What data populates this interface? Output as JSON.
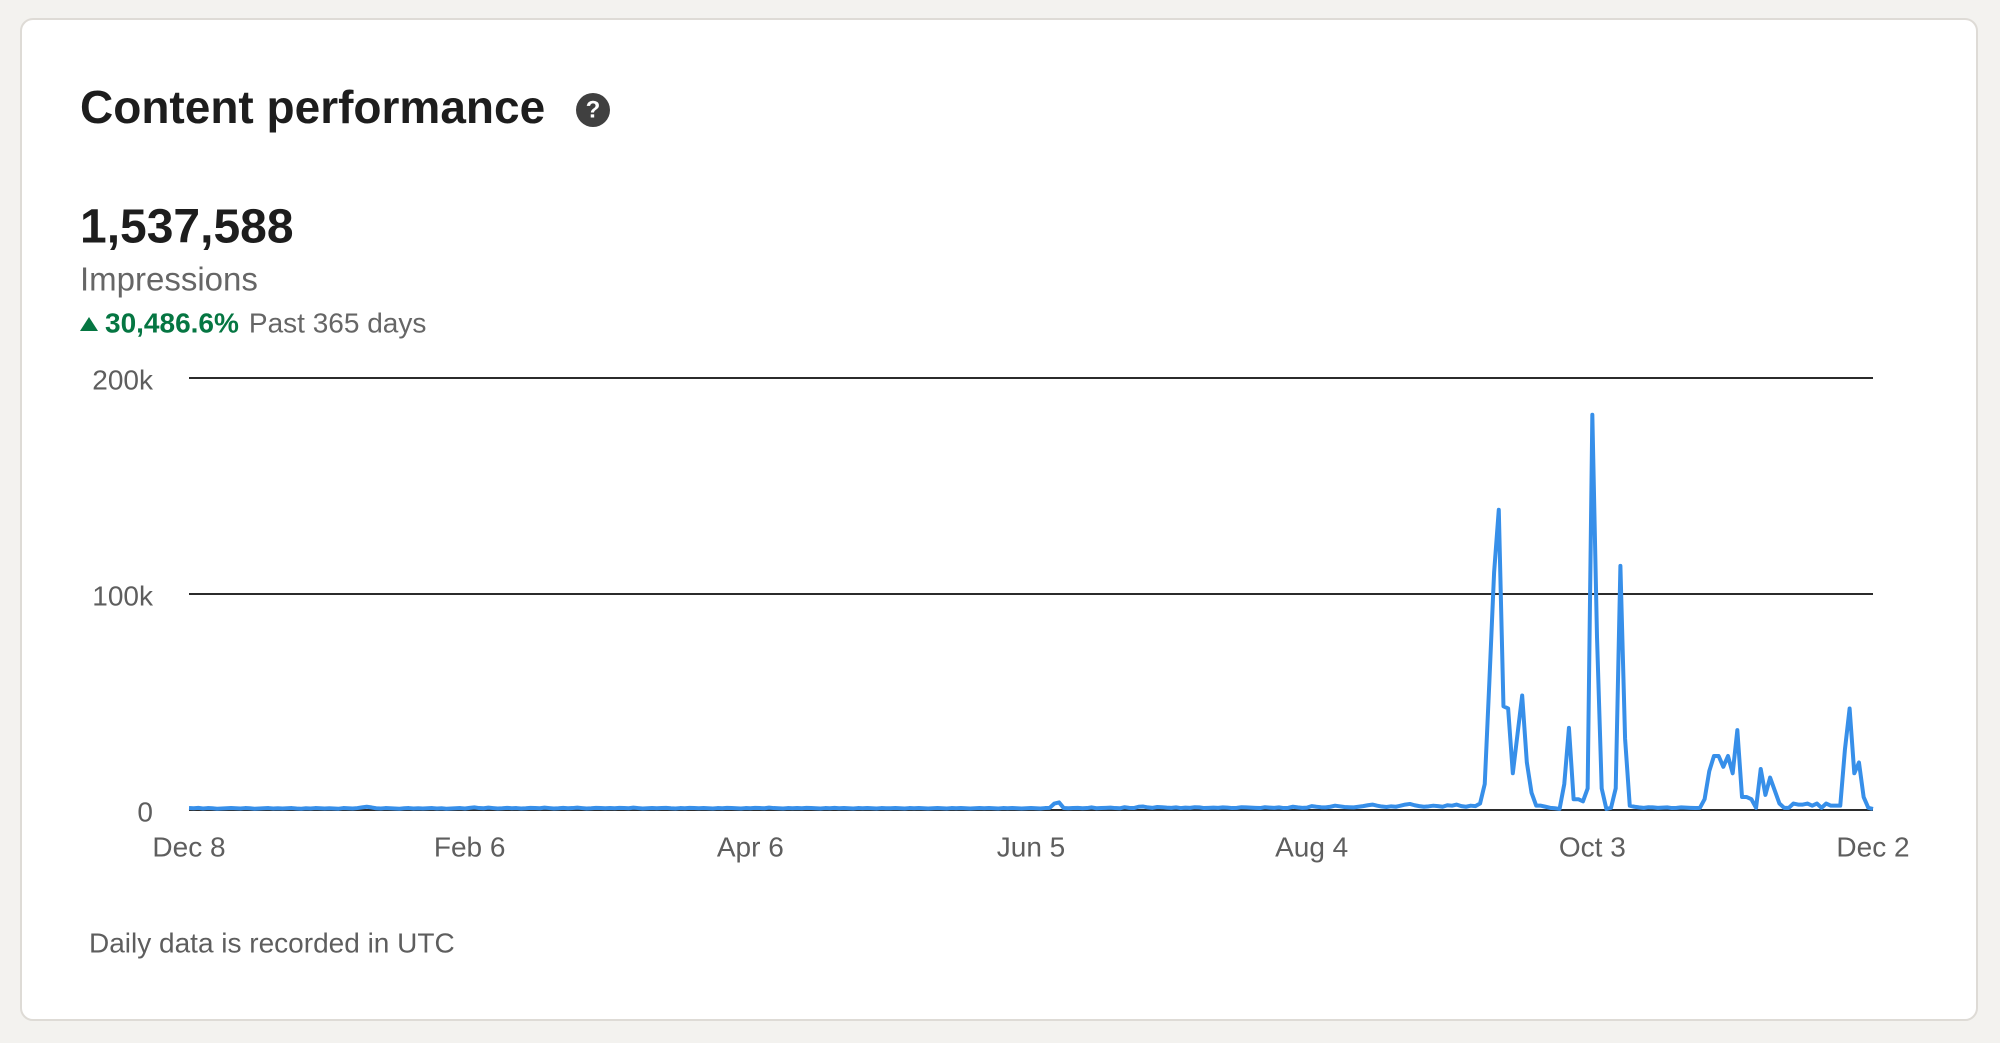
{
  "header": {
    "title": "Content performance",
    "total": "1,537,588",
    "metric": "Impressions",
    "change": "30,486.6%",
    "period": "Past 365 days"
  },
  "footer": "Daily data is recorded in UTC",
  "chart_data": {
    "type": "line",
    "color": "#378fe9",
    "grid": true,
    "ylim": [
      0,
      200000
    ],
    "yticks": [
      0,
      {
        "value": 100000,
        "label": "100k"
      },
      {
        "value": 200000,
        "label": "200k"
      }
    ],
    "categories": [
      "Dec 8",
      null,
      null,
      null,
      null,
      null,
      null,
      null,
      null,
      null,
      null,
      null,
      null,
      null,
      null,
      null,
      null,
      null,
      null,
      null,
      null,
      null,
      null,
      null,
      null,
      null,
      null,
      null,
      null,
      null,
      null,
      null,
      null,
      null,
      null,
      null,
      null,
      null,
      null,
      null,
      null,
      null,
      null,
      null,
      null,
      null,
      null,
      null,
      null,
      null,
      null,
      null,
      null,
      null,
      null,
      null,
      null,
      null,
      null,
      null,
      "Feb 6",
      null,
      null,
      null,
      null,
      null,
      null,
      null,
      null,
      null,
      null,
      null,
      null,
      null,
      null,
      null,
      null,
      null,
      null,
      null,
      null,
      null,
      null,
      null,
      null,
      null,
      null,
      null,
      null,
      null,
      null,
      null,
      null,
      null,
      null,
      null,
      null,
      null,
      null,
      null,
      null,
      null,
      null,
      null,
      null,
      null,
      null,
      null,
      null,
      null,
      null,
      null,
      null,
      null,
      null,
      null,
      null,
      null,
      null,
      null,
      "Apr 6",
      null,
      null,
      null,
      null,
      null,
      null,
      null,
      null,
      null,
      null,
      null,
      null,
      null,
      null,
      null,
      null,
      null,
      null,
      null,
      null,
      null,
      null,
      null,
      null,
      null,
      null,
      null,
      null,
      null,
      null,
      null,
      null,
      null,
      null,
      null,
      null,
      null,
      null,
      null,
      null,
      null,
      null,
      null,
      null,
      null,
      null,
      null,
      null,
      null,
      null,
      null,
      null,
      null,
      null,
      null,
      null,
      null,
      null,
      null,
      "Jun 5",
      null,
      null,
      null,
      null,
      null,
      null,
      null,
      null,
      null,
      null,
      null,
      null,
      null,
      null,
      null,
      null,
      null,
      null,
      null,
      null,
      null,
      null,
      null,
      null,
      null,
      null,
      null,
      null,
      null,
      null,
      null,
      null,
      null,
      null,
      null,
      null,
      null,
      null,
      null,
      null,
      null,
      null,
      null,
      null,
      null,
      null,
      null,
      null,
      null,
      null,
      null,
      null,
      null,
      null,
      null,
      null,
      null,
      null,
      null,
      "Aug 4",
      null,
      null,
      null,
      null,
      null,
      null,
      null,
      null,
      null,
      null,
      null,
      null,
      null,
      null,
      null,
      null,
      null,
      null,
      null,
      null,
      null,
      null,
      null,
      null,
      null,
      null,
      null,
      null,
      null,
      null,
      null,
      null,
      null,
      null,
      null,
      null,
      null,
      null,
      null,
      null,
      null,
      null,
      null,
      null,
      null,
      null,
      null,
      null,
      null,
      null,
      null,
      null,
      null,
      null,
      null,
      null,
      null,
      null,
      null,
      "Oct 3",
      null,
      null,
      null,
      null,
      null,
      null,
      null,
      null,
      null,
      null,
      null,
      null,
      null,
      null,
      null,
      null,
      null,
      null,
      null,
      null,
      null,
      null,
      null,
      null,
      null,
      null,
      null,
      null,
      null,
      null,
      null,
      null,
      null,
      null,
      null,
      null,
      null,
      null,
      null,
      null,
      null,
      null,
      null,
      null,
      null,
      null,
      null,
      null,
      null,
      null,
      null,
      null,
      null,
      null,
      null,
      null,
      null,
      null,
      null,
      "Dec 2"
    ],
    "values": [
      900,
      800,
      1000,
      700,
      900,
      800,
      600,
      700,
      800,
      900,
      800,
      700,
      900,
      800,
      600,
      700,
      800,
      900,
      700,
      800,
      700,
      800,
      900,
      700,
      600,
      800,
      700,
      900,
      800,
      700,
      800,
      700,
      600,
      900,
      800,
      700,
      900,
      1200,
      1500,
      1200,
      800,
      700,
      900,
      800,
      700,
      600,
      800,
      900,
      700,
      800,
      700,
      800,
      900,
      700,
      800,
      600,
      700,
      800,
      900,
      700,
      1000,
      1200,
      900,
      800,
      1100,
      900,
      700,
      800,
      1000,
      800,
      900,
      700,
      800,
      1000,
      900,
      800,
      1100,
      900,
      700,
      800,
      1000,
      800,
      900,
      1100,
      900,
      700,
      800,
      1000,
      900,
      800,
      900,
      800,
      1000,
      900,
      800,
      1100,
      900,
      700,
      800,
      900,
      800,
      900,
      1000,
      800,
      700,
      900,
      800,
      1000,
      900,
      800,
      900,
      800,
      700,
      900,
      800,
      1000,
      900,
      800,
      700,
      900,
      800,
      1000,
      900,
      800,
      1100,
      900,
      800,
      700,
      900,
      800,
      900,
      800,
      1000,
      900,
      800,
      700,
      900,
      800,
      1000,
      800,
      900,
      800,
      700,
      900,
      800,
      900,
      800,
      700,
      900,
      800,
      800,
      900,
      800,
      700,
      900,
      800,
      900,
      800,
      700,
      800,
      900,
      800,
      700,
      900,
      800,
      900,
      800,
      700,
      800,
      900,
      800,
      900,
      800,
      700,
      900,
      800,
      900,
      800,
      700,
      800,
      900,
      800,
      700,
      900,
      1000,
      3000,
      3500,
      900,
      800,
      900,
      1000,
      800,
      900,
      1200,
      800,
      900,
      1000,
      1100,
      900,
      800,
      1300,
      1000,
      900,
      1500,
      1600,
      1200,
      1000,
      1400,
      1300,
      1100,
      1000,
      1200,
      900,
      1100,
      1000,
      1300,
      1200,
      900,
      1000,
      1100,
      1000,
      1200,
      1100,
      900,
      1000,
      1300,
      1200,
      1100,
      1000,
      900,
      1300,
      1100,
      1000,
      1200,
      900,
      1000,
      1500,
      1200,
      1000,
      1100,
      1800,
      1500,
      1300,
      1200,
      1500,
      2000,
      1700,
      1400,
      1300,
      1200,
      1500,
      1800,
      2200,
      2500,
      2000,
      1600,
      1400,
      1700,
      1500,
      2000,
      2500,
      2800,
      2200,
      1800,
      1500,
      1700,
      2000,
      1800,
      1500,
      2200,
      2000,
      2500,
      1800,
      1500,
      2000,
      1800,
      3000,
      12000,
      60000,
      110000,
      139000,
      48000,
      47000,
      17000,
      35000,
      53000,
      22000,
      8000,
      2000,
      2000,
      1500,
      1000,
      800,
      500,
      12000,
      38000,
      5000,
      5000,
      4000,
      10000,
      183000,
      80000,
      10000,
      500,
      1000,
      10000,
      113000,
      33000,
      2000,
      1500,
      1200,
      1000,
      1300,
      1200,
      1000,
      1100,
      1200,
      900,
      1000,
      1200,
      1100,
      1000,
      900,
      1000,
      5000,
      18000,
      25000,
      25000,
      20000,
      25000,
      17000,
      37000,
      6000,
      6000,
      5000,
      1000,
      19000,
      7000,
      15000,
      9000,
      3000,
      1000,
      1000,
      3000,
      2500,
      2500,
      3000,
      2000,
      3000,
      1000,
      3000,
      2000,
      2000,
      2000,
      28000,
      47000,
      17000,
      22000,
      6000,
      1000,
      500
    ]
  }
}
